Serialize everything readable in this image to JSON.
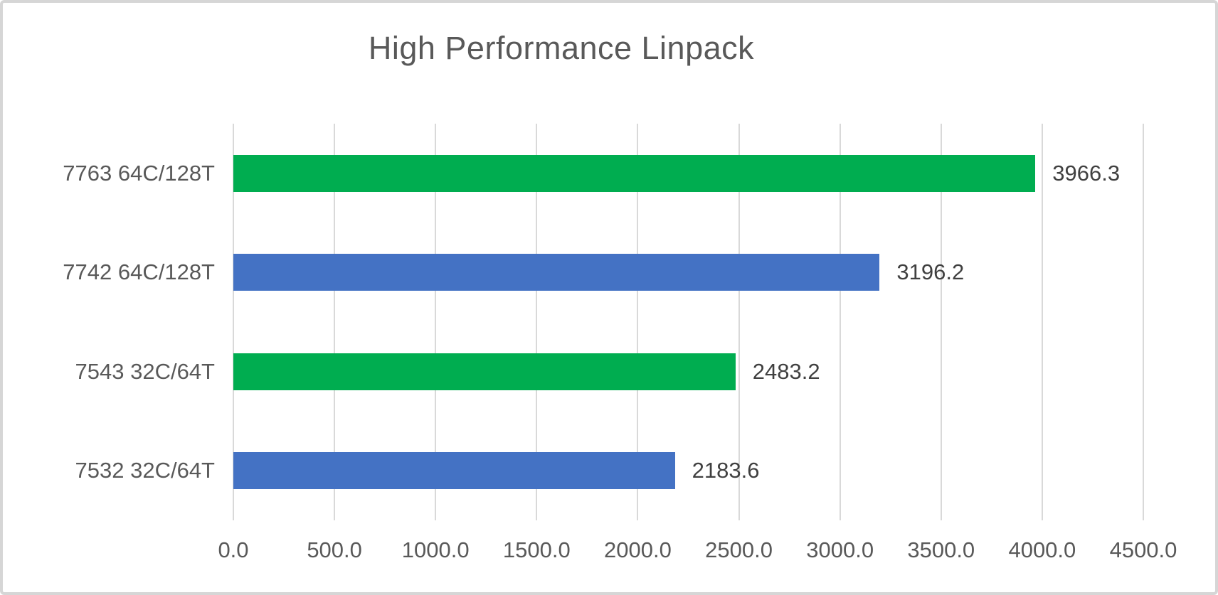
{
  "chart_data": {
    "type": "bar",
    "orientation": "horizontal",
    "title": "High Performance Linpack",
    "categories": [
      "7763 64C/128T",
      "7742 64C/128T",
      "7543 32C/64T",
      "7532 32C/64T"
    ],
    "values": [
      3966.3,
      3196.2,
      2483.2,
      2183.6
    ],
    "value_labels": [
      "3966.3",
      "3196.2",
      "2483.2",
      "2183.6"
    ],
    "bar_colors": [
      "#00AD50",
      "#4472C4",
      "#00AD50",
      "#4472C4"
    ],
    "xlim": [
      0,
      4500
    ],
    "x_ticks": [
      0,
      500,
      1000,
      1500,
      2000,
      2500,
      3000,
      3500,
      4000,
      4500
    ],
    "x_tick_labels": [
      "0.0",
      "500.0",
      "1000.0",
      "1500.0",
      "2000.0",
      "2500.0",
      "3000.0",
      "3500.0",
      "4000.0",
      "4500.0"
    ],
    "xlabel": "",
    "ylabel": "",
    "grid": "vertical-major-on",
    "legend": "none",
    "colors": {
      "green_series": "#00AD50",
      "blue_series": "#4472C4",
      "gridline": "#D9D9D9",
      "title_text": "#595959",
      "axis_text": "#595959",
      "value_text": "#404040",
      "frame_border": "#D6D6D6",
      "background": "#FFFFFF"
    }
  }
}
